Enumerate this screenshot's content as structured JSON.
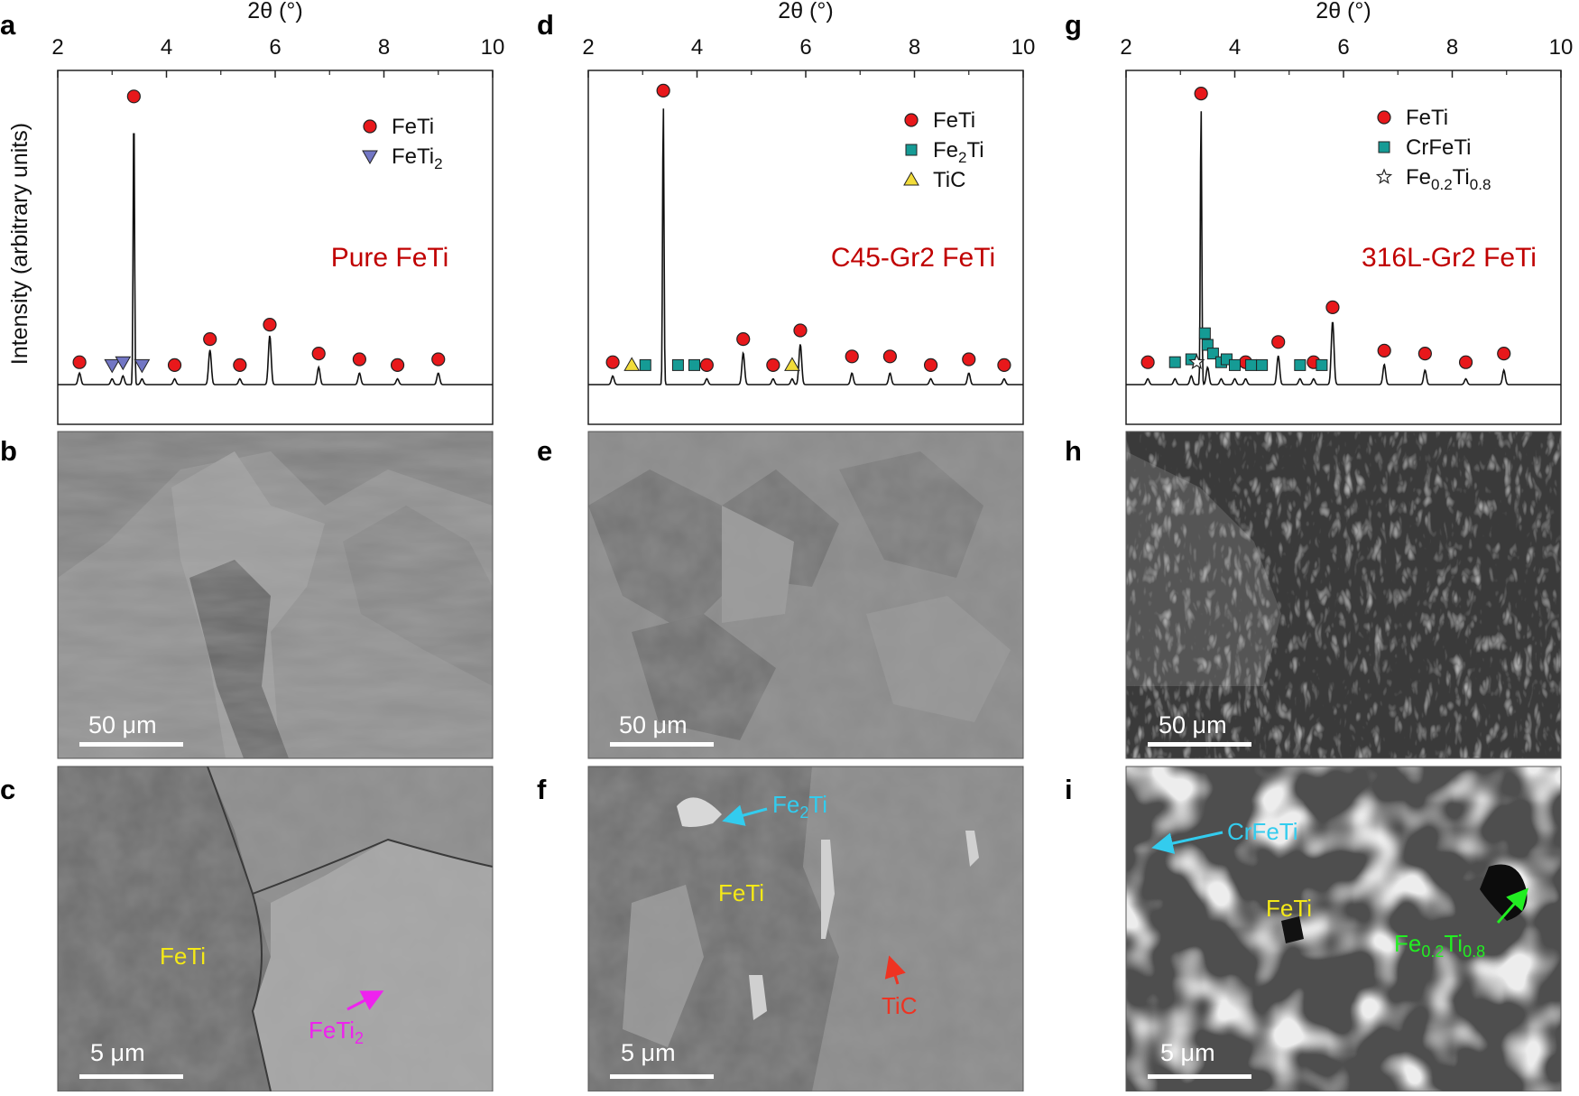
{
  "panel_letters": [
    "a",
    "b",
    "c",
    "d",
    "e",
    "f",
    "g",
    "h",
    "i"
  ],
  "xrd_axis": {
    "xlabel": "2θ (°)",
    "ylabel": "Intensity (arbitrary units)",
    "ticks": [
      "2",
      "4",
      "6",
      "8",
      "10"
    ],
    "xlim": [
      2,
      10
    ]
  },
  "colors": {
    "FeTi": "#e8181b",
    "FeTi2": "#7276c4",
    "Fe2Ti": "#159b95",
    "CrFeTi": "#159b95",
    "TiC": "#f2dc3a",
    "sample_title": "#c00000",
    "ann_yellow": "#f5e917",
    "ann_magenta": "#ee22ee",
    "ann_cyan": "#33ccee",
    "ann_red": "#ee3322",
    "ann_green": "#22ee22"
  },
  "chart_data": [
    {
      "type": "line",
      "panel": "a",
      "title": "Pure FeTi",
      "xlabel": "2θ (°)",
      "ylabel": "Intensity (arbitrary units)",
      "xlim": [
        2,
        10
      ],
      "ylim": [
        0,
        100
      ],
      "legend": [
        "FeTi",
        "FeTi2"
      ],
      "legend_position": "top-right",
      "series": [
        {
          "name": "FeTi",
          "marker": "circle",
          "x": [
            2.4,
            3.4,
            4.15,
            4.8,
            5.35,
            5.9,
            6.8,
            7.55,
            8.25,
            9.0
          ],
          "y": [
            4,
            96,
            3,
            12,
            3,
            17,
            7,
            5,
            3,
            5
          ]
        },
        {
          "name": "FeTi2",
          "marker": "triangle-down",
          "x": [
            3.0,
            3.2,
            3.55
          ],
          "y": [
            3,
            4,
            3
          ]
        }
      ],
      "peaks": [
        {
          "x": 2.4,
          "y": 4
        },
        {
          "x": 3.0,
          "y": 2
        },
        {
          "x": 3.2,
          "y": 3
        },
        {
          "x": 3.4,
          "y": 96
        },
        {
          "x": 3.55,
          "y": 2
        },
        {
          "x": 4.15,
          "y": 2
        },
        {
          "x": 4.8,
          "y": 12
        },
        {
          "x": 5.35,
          "y": 2
        },
        {
          "x": 5.9,
          "y": 17
        },
        {
          "x": 6.8,
          "y": 6
        },
        {
          "x": 7.55,
          "y": 4
        },
        {
          "x": 8.25,
          "y": 2
        },
        {
          "x": 9.0,
          "y": 4
        }
      ]
    },
    {
      "type": "line",
      "panel": "d",
      "title": "C45-Gr2 FeTi",
      "xlabel": "2θ (°)",
      "xlim": [
        2,
        10
      ],
      "ylim": [
        0,
        100
      ],
      "legend": [
        "FeTi",
        "Fe2Ti",
        "TiC"
      ],
      "legend_position": "top-right",
      "series": [
        {
          "name": "FeTi",
          "marker": "circle",
          "x": [
            2.45,
            3.38,
            4.18,
            4.85,
            5.4,
            5.9,
            6.85,
            7.55,
            8.3,
            9.0,
            9.65
          ],
          "y": [
            4,
            98,
            3,
            12,
            3,
            15,
            6,
            6,
            3,
            5,
            3
          ]
        },
        {
          "name": "Fe2Ti",
          "marker": "square",
          "x": [
            3.05,
            3.65,
            3.95
          ],
          "y": [
            3,
            3,
            3
          ]
        },
        {
          "name": "TiC",
          "marker": "triangle-up",
          "x": [
            2.8,
            5.75
          ],
          "y": [
            3,
            3
          ]
        }
      ],
      "peaks": [
        {
          "x": 2.45,
          "y": 3
        },
        {
          "x": 3.38,
          "y": 98
        },
        {
          "x": 4.18,
          "y": 2
        },
        {
          "x": 4.85,
          "y": 11
        },
        {
          "x": 5.4,
          "y": 2
        },
        {
          "x": 5.75,
          "y": 2
        },
        {
          "x": 5.9,
          "y": 14
        },
        {
          "x": 6.85,
          "y": 4
        },
        {
          "x": 7.55,
          "y": 4
        },
        {
          "x": 8.3,
          "y": 2
        },
        {
          "x": 9.0,
          "y": 4
        },
        {
          "x": 9.65,
          "y": 2
        }
      ]
    },
    {
      "type": "line",
      "panel": "g",
      "title": "316L-Gr2 FeTi",
      "xlabel": "2θ (°)",
      "xlim": [
        2,
        10
      ],
      "ylim": [
        0,
        100
      ],
      "legend": [
        "FeTi",
        "CrFeTi",
        "Fe0.2Ti0.8"
      ],
      "legend_position": "top-right",
      "series": [
        {
          "name": "FeTi",
          "marker": "circle",
          "x": [
            2.4,
            3.38,
            4.2,
            4.8,
            5.45,
            5.8,
            6.75,
            7.5,
            8.25,
            8.95
          ],
          "y": [
            4,
            97,
            4,
            11,
            4,
            23,
            8,
            7,
            4,
            7
          ]
        },
        {
          "name": "CrFeTi",
          "marker": "square",
          "x": [
            2.9,
            3.2,
            3.45,
            3.5,
            3.6,
            3.75,
            3.85,
            4.0,
            4.3,
            4.5,
            5.2,
            5.6
          ],
          "y": [
            4,
            5,
            14,
            10,
            7,
            4,
            5,
            3,
            3,
            3,
            3,
            3
          ]
        },
        {
          "name": "Fe0.2Ti0.8",
          "marker": "star",
          "x": [
            3.3
          ],
          "y": [
            4
          ]
        }
      ],
      "peaks": [
        {
          "x": 2.4,
          "y": 2
        },
        {
          "x": 2.9,
          "y": 2
        },
        {
          "x": 3.2,
          "y": 3
        },
        {
          "x": 3.38,
          "y": 97
        },
        {
          "x": 3.5,
          "y": 6
        },
        {
          "x": 3.75,
          "y": 2
        },
        {
          "x": 4.0,
          "y": 2
        },
        {
          "x": 4.2,
          "y": 2
        },
        {
          "x": 4.8,
          "y": 10
        },
        {
          "x": 5.2,
          "y": 2
        },
        {
          "x": 5.45,
          "y": 2
        },
        {
          "x": 5.8,
          "y": 22
        },
        {
          "x": 6.75,
          "y": 7
        },
        {
          "x": 7.5,
          "y": 5
        },
        {
          "x": 8.25,
          "y": 2
        },
        {
          "x": 8.95,
          "y": 5
        }
      ]
    }
  ],
  "micrographs": {
    "b": {
      "scale": "50 μm"
    },
    "c": {
      "scale": "5 μm",
      "annotations": [
        "FeTi",
        "FeTi2"
      ]
    },
    "e": {
      "scale": "50 μm"
    },
    "f": {
      "scale": "5 μm",
      "annotations": [
        "Fe2Ti",
        "FeTi",
        "TiC"
      ]
    },
    "h": {
      "scale": "50 μm"
    },
    "i": {
      "scale": "5 μm",
      "annotations": [
        "CrFeTi",
        "FeTi",
        "Fe0.2Ti0.8"
      ]
    }
  }
}
